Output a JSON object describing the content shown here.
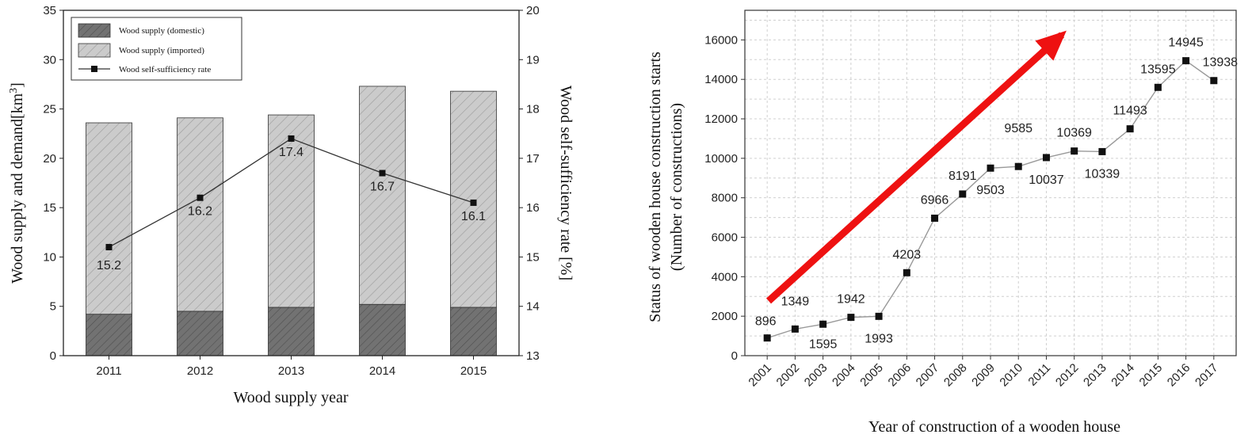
{
  "chart_data": [
    {
      "type": "bar",
      "stacked": true,
      "xlabel": "Wood supply year",
      "ylabel": "Wood supply and demand[km",
      "ylabel_sup": "3",
      "ylabel_end": "]",
      "y2label": "Wood self-sufficiency rate [%]",
      "categories": [
        "2011",
        "2012",
        "2013",
        "2014",
        "2015"
      ],
      "ylim": [
        0,
        35
      ],
      "y2lim": [
        13,
        20
      ],
      "yticks": [
        "0",
        "5",
        "10",
        "15",
        "20",
        "25",
        "30",
        "35"
      ],
      "y2ticks": [
        "13",
        "14",
        "15",
        "16",
        "17",
        "18",
        "19",
        "20"
      ],
      "series": [
        {
          "name": "Wood supply (domestic)",
          "values": [
            4.2,
            4.5,
            4.9,
            5.2,
            4.9
          ],
          "color": "#6e6e6e"
        },
        {
          "name": "Wood supply (imported)",
          "values": [
            19.4,
            19.6,
            19.5,
            22.1,
            21.9
          ],
          "color": "#c8c8c8"
        },
        {
          "name": "Wood self-sufficiency rate",
          "values": [
            15.2,
            16.2,
            17.4,
            16.7,
            16.1
          ],
          "labels": [
            "15.2",
            "16.2",
            "17.4",
            "16.7",
            "16.1"
          ],
          "axis": "right",
          "type": "line"
        }
      ],
      "legend_position": "top-left",
      "grid": false
    },
    {
      "type": "line",
      "xlabel": "Year of construction of a wooden house",
      "ylabel_line1": "Status of wooden house construction starts",
      "ylabel_line2": "(Number of constructions)",
      "x": [
        "2001",
        "2002",
        "2003",
        "2004",
        "2005",
        "2006",
        "2007",
        "2008",
        "2009",
        "2010",
        "2011",
        "2012",
        "2013",
        "2014",
        "2015",
        "2016",
        "2017"
      ],
      "values": [
        896,
        1349,
        1595,
        1942,
        1993,
        4203,
        6966,
        8191,
        9503,
        9585,
        10037,
        10369,
        10339,
        11493,
        13595,
        14945,
        13938
      ],
      "labels": [
        "896",
        "1349",
        "1595",
        "1942",
        "1993",
        "4203",
        "6966",
        "8191",
        "9503",
        "9585",
        "10037",
        "10369",
        "10339",
        "11493",
        "13595",
        "14945",
        "13938"
      ],
      "ylim": [
        0,
        17500
      ],
      "yticks": [
        "0",
        "2000",
        "4000",
        "6000",
        "8000",
        "10000",
        "12000",
        "14000",
        "16000"
      ],
      "grid": true,
      "annotation": {
        "type": "arrow",
        "color": "#ee1111",
        "meaning": "increasing trend"
      }
    }
  ]
}
